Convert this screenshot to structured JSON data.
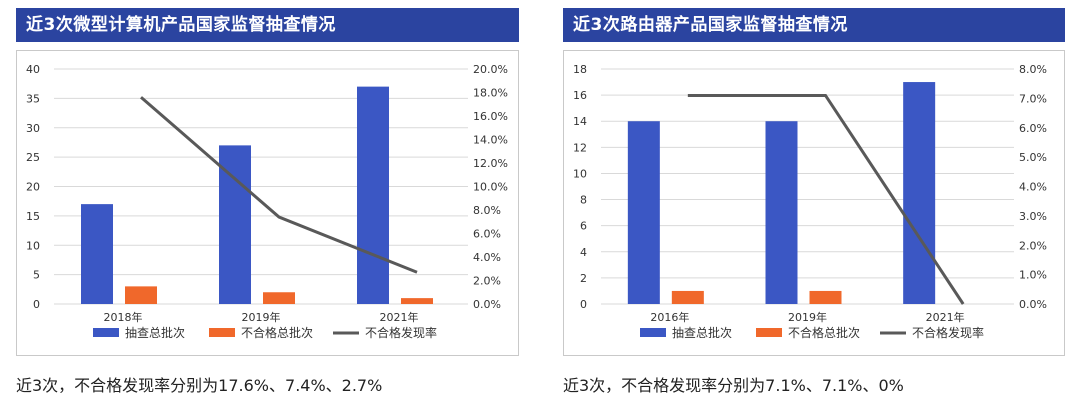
{
  "colors": {
    "title_bg": "#2b44a0",
    "bar_total": "#3b57c4",
    "bar_fail": "#f0682b",
    "line_rate": "#595959",
    "grid": "#d9d9d9"
  },
  "chart_data": [
    {
      "type": "bar",
      "title": "近3次微型计算机产品国家监督抽查情况",
      "categories": [
        "2018年",
        "2019年",
        "2021年"
      ],
      "series": [
        {
          "name": "抽查总批次",
          "kind": "bar",
          "axis": "left",
          "values": [
            17,
            27,
            37
          ]
        },
        {
          "name": "不合格总批次",
          "kind": "bar",
          "axis": "left",
          "values": [
            3,
            2,
            1
          ]
        },
        {
          "name": "不合格发现率",
          "kind": "line",
          "axis": "right",
          "values": [
            17.6,
            7.4,
            2.7
          ]
        }
      ],
      "ylim_left": [
        0,
        40
      ],
      "yticks_left": [
        "0",
        "5",
        "10",
        "15",
        "20",
        "25",
        "30",
        "35",
        "40"
      ],
      "ylim_right": [
        0,
        20
      ],
      "yticks_right": [
        "0.0%",
        "2.0%",
        "4.0%",
        "6.0%",
        "8.0%",
        "10.0%",
        "12.0%",
        "14.0%",
        "16.0%",
        "18.0%",
        "20.0%"
      ],
      "legend": [
        "抽查总批次",
        "不合格总批次",
        "不合格发现率"
      ],
      "legend_position": "bottom",
      "caption": "近3次，不合格发现率分别为17.6%、7.4%、2.7%"
    },
    {
      "type": "bar",
      "title": "近3次路由器产品国家监督抽查情况",
      "categories": [
        "2016年",
        "2019年",
        "2021年"
      ],
      "series": [
        {
          "name": "抽查总批次",
          "kind": "bar",
          "axis": "left",
          "values": [
            14,
            14,
            17
          ]
        },
        {
          "name": "不合格总批次",
          "kind": "bar",
          "axis": "left",
          "values": [
            1,
            1,
            0
          ]
        },
        {
          "name": "不合格发现率",
          "kind": "line",
          "axis": "right",
          "values": [
            7.1,
            7.1,
            0
          ]
        }
      ],
      "ylim_left": [
        0,
        18
      ],
      "yticks_left": [
        "0",
        "2",
        "4",
        "6",
        "8",
        "10",
        "12",
        "14",
        "16",
        "18"
      ],
      "ylim_right": [
        0,
        8
      ],
      "yticks_right": [
        "0.0%",
        "1.0%",
        "2.0%",
        "3.0%",
        "4.0%",
        "5.0%",
        "6.0%",
        "7.0%",
        "8.0%"
      ],
      "legend": [
        "抽查总批次",
        "不合格总批次",
        "不合格发现率"
      ],
      "legend_position": "bottom",
      "caption": "近3次，不合格发现率分别为7.1%、7.1%、0%"
    }
  ]
}
